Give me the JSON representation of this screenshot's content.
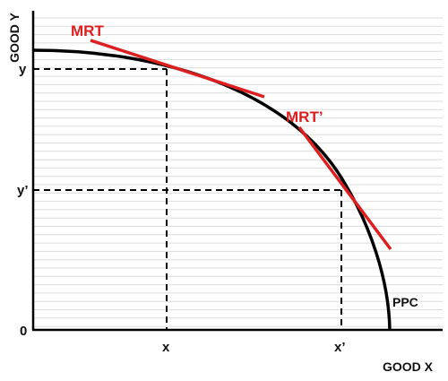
{
  "labels": {
    "y_axis": "GOOD Y",
    "x_axis": "GOOD X",
    "origin": "0",
    "y_tick_1": "y",
    "y_tick_2": "y’",
    "x_tick_1": "x",
    "x_tick_2": "x’",
    "tangent_1": "MRT",
    "tangent_2": "MRT’",
    "curve": "PPC"
  },
  "colors": {
    "tangent": "#dd1f1f",
    "curve": "#000000",
    "grid": "#d8d8d8",
    "axis": "#000000"
  }
}
